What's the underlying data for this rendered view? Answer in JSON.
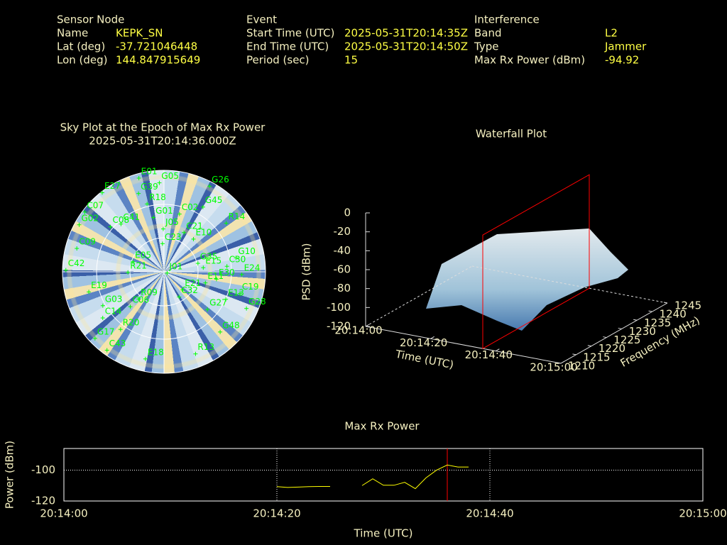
{
  "header": {
    "sensor_node": {
      "title": "Sensor Node",
      "rows": [
        [
          "Name",
          "KEPK_SN"
        ],
        [
          "Lat (deg)",
          "-37.721046448"
        ],
        [
          "Lon (deg)",
          "144.847915649"
        ]
      ]
    },
    "event": {
      "title": "Event",
      "rows": [
        [
          "Start Time (UTC)",
          "2025-05-31T20:14:35Z"
        ],
        [
          "End Time (UTC)",
          "2025-05-31T20:14:50Z"
        ],
        [
          "Period (sec)",
          "15"
        ]
      ]
    },
    "interference": {
      "title": "Interference",
      "rows": [
        [
          "Band",
          "L2"
        ],
        [
          "Type",
          "Jammer"
        ],
        [
          "Max Rx Power (dBm)",
          "-94.92"
        ]
      ]
    }
  },
  "chart_data": [
    {
      "type": "skyplot",
      "title": "Sky Plot at the Epoch of Max Rx Power",
      "subtitle": "2025-05-31T20:14:36.000Z",
      "color": "#00ff00",
      "labels": [
        "G26",
        "G05",
        "E01",
        "G45",
        "R14",
        "G10",
        "C30",
        "E24",
        "C19",
        "G28",
        "E13",
        "G48",
        "R13",
        "E18",
        "C43",
        "G17",
        "R20",
        "C14",
        "G03",
        "C06",
        "R09",
        "E19",
        "C42",
        "C09",
        "C07",
        "G02",
        "C08",
        "C41",
        "E27",
        "G39",
        "R18",
        "G01",
        "C02",
        "J05",
        "C21",
        "E10",
        "C23",
        "G35",
        "E15",
        "E30",
        "E11",
        "J01",
        "E21",
        "C32",
        "G27",
        "R21",
        "E05"
      ],
      "azimuth": [
        28,
        357,
        345,
        31,
        52,
        79,
        85,
        92,
        106,
        114,
        114,
        137,
        159,
        192,
        216,
        226,
        217,
        233,
        241,
        224,
        223,
        255,
        271,
        285,
        307,
        299,
        310,
        318,
        322,
        342,
        346,
        349,
        15,
        359,
        27,
        42,
        357,
        76,
        84,
        98,
        105,
        112,
        134,
        149,
        131,
        269,
        288
      ],
      "elevation": [
        4,
        11,
        4,
        23,
        20,
        25,
        34,
        21,
        20,
        10,
        30,
        17,
        12,
        11,
        4,
        5,
        26,
        22,
        28,
        47,
        57,
        21,
        3,
        10,
        2,
        4,
        28,
        33,
        1,
        17,
        28,
        41,
        37,
        52,
        51,
        51,
        65,
        59,
        55,
        43,
        52,
        87,
        67,
        64,
        39,
        58,
        61
      ]
    },
    {
      "type": "surface",
      "title": "Waterfall Plot",
      "xlabel": "Time (UTC)",
      "ylabel": "Frequency (MHz)",
      "zlabel": "PSD (dBm)",
      "xlim": [
        "20:14:00",
        "20:15:00"
      ],
      "xticks": [
        "20:14:00",
        "20:14:20",
        "20:14:40",
        "20:15:00"
      ],
      "ylim": [
        1210,
        1245
      ],
      "yticks": [
        1210,
        1215,
        1220,
        1225,
        1230,
        1235,
        1240,
        1245
      ],
      "zlim": [
        -120,
        0
      ],
      "zticks": [
        0,
        -20,
        -40,
        -60,
        -80,
        -100,
        -120
      ]
    },
    {
      "type": "line",
      "title": "Max Rx Power",
      "xlabel": "Time (UTC)",
      "ylabel": "Power (dBm)",
      "color": "#ffff00",
      "grid": true,
      "x": [
        "20:14:20",
        "20:14:21",
        "20:14:22",
        "20:14:23",
        "20:14:24",
        "20:14:25",
        "20:14:26",
        "20:14:27",
        "20:14:28",
        "20:14:29",
        "20:14:30",
        "20:14:31",
        "20:14:32",
        "20:14:33",
        "20:14:34",
        "20:14:35",
        "20:14:36",
        "20:14:37",
        "20:14:38"
      ],
      "values": [
        -110.7,
        -111.2,
        -111,
        -110.7,
        -110.6,
        -110.6,
        null,
        null,
        -110,
        -105.6,
        -109.8,
        -109.8,
        -107.9,
        -112,
        -105,
        -100,
        -96.7,
        -98,
        -98
      ],
      "xlim": [
        "20:14:00",
        "20:15:00"
      ],
      "xticks": [
        "20:14:00",
        "20:14:20",
        "20:14:40",
        "20:15:00"
      ],
      "ylim": [
        -120,
        -86
      ],
      "yticks": [
        -120,
        -100
      ]
    }
  ]
}
